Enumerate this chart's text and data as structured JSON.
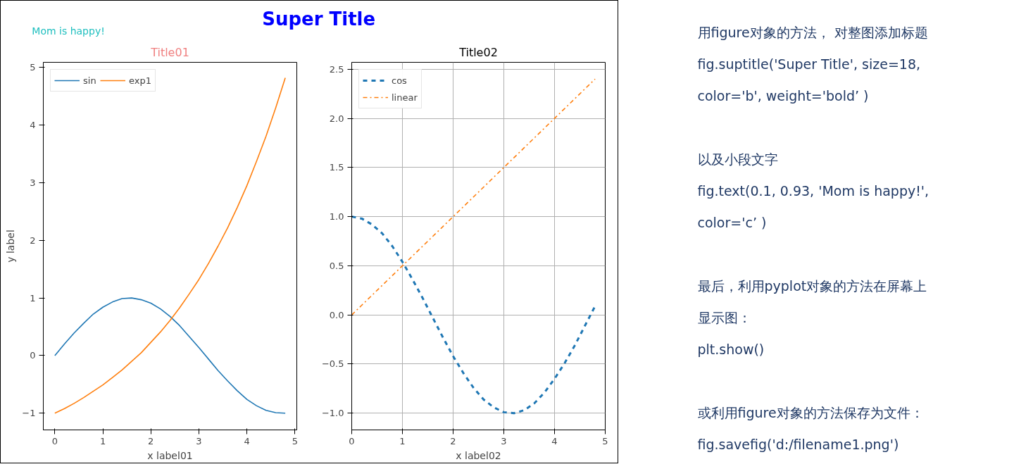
{
  "chart_data": [
    {
      "type": "line",
      "title": "Title01",
      "xlabel": "x label01",
      "ylabel": "y label",
      "annotations": [
        "Super Title",
        "Mom is happy!"
      ],
      "x": [
        0,
        0.2,
        0.4,
        0.6,
        0.8,
        1.0,
        1.2,
        1.4,
        1.6,
        1.8,
        2.0,
        2.2,
        2.4,
        2.6,
        2.8,
        3.0,
        3.2,
        3.4,
        3.6,
        3.8,
        4.0,
        4.2,
        4.4,
        4.6,
        4.8
      ],
      "series": [
        {
          "name": "sin",
          "color": "#1f77b4",
          "line_style": "solid",
          "values": [
            0,
            0.2,
            0.39,
            0.56,
            0.72,
            0.84,
            0.93,
            0.99,
            1.0,
            0.97,
            0.91,
            0.81,
            0.68,
            0.52,
            0.33,
            0.14,
            -0.06,
            -0.26,
            -0.44,
            -0.61,
            -0.76,
            -0.87,
            -0.95,
            -0.99,
            -1.0
          ]
        },
        {
          "name": "exp1",
          "color": "#ff7f0e",
          "line_style": "solid",
          "values": [
            -1,
            -0.92,
            -0.83,
            -0.73,
            -0.62,
            -0.51,
            -0.38,
            -0.25,
            -0.1,
            0.05,
            0.23,
            0.41,
            0.61,
            0.83,
            1.07,
            1.32,
            1.6,
            1.9,
            2.22,
            2.57,
            2.95,
            3.37,
            3.81,
            4.3,
            4.82
          ]
        }
      ],
      "xlim": [
        -0.24,
        5.04
      ],
      "xticks": [
        0,
        1,
        2,
        3,
        4,
        5
      ],
      "ylim": [
        -1.29,
        5.09
      ],
      "yticks": [
        {
          "value": -1,
          "label": "−1"
        },
        0,
        1,
        2,
        3,
        4,
        5
      ],
      "grid": false,
      "legend": "top left",
      "marker": "none"
    },
    {
      "type": "line",
      "title": "Title02",
      "xlabel": "x label02",
      "x": [
        0,
        0.2,
        0.4,
        0.6,
        0.8,
        1.0,
        1.2,
        1.4,
        1.6,
        1.8,
        2.0,
        2.2,
        2.4,
        2.6,
        2.8,
        3.0,
        3.2,
        3.4,
        3.6,
        3.8,
        4.0,
        4.2,
        4.4,
        4.6,
        4.8
      ],
      "series": [
        {
          "name": "cos",
          "color": "#1f77b4",
          "line_style": "dashed",
          "values": [
            1,
            0.98,
            0.92,
            0.83,
            0.7,
            0.54,
            0.36,
            0.17,
            -0.03,
            -0.23,
            -0.42,
            -0.59,
            -0.74,
            -0.86,
            -0.94,
            -0.99,
            -1.0,
            -0.97,
            -0.9,
            -0.79,
            -0.65,
            -0.49,
            -0.31,
            -0.11,
            0.09
          ]
        },
        {
          "name": "linear",
          "color": "#ff7f0e",
          "line_style": "dashdot",
          "values": [
            0,
            0.1,
            0.2,
            0.3,
            0.4,
            0.5,
            0.6,
            0.7,
            0.8,
            0.9,
            1.0,
            1.1,
            1.2,
            1.3,
            1.4,
            1.5,
            1.6,
            1.7,
            1.8,
            1.9,
            2.0,
            2.1,
            2.2,
            2.3,
            2.4
          ]
        }
      ],
      "xlim": [
        0,
        5
      ],
      "xticks": [
        0,
        1,
        2,
        3,
        4,
        5
      ],
      "ylim": [
        -1.17,
        2.57
      ],
      "yticks": [
        {
          "value": -1,
          "label": "−1.0"
        },
        {
          "value": -0.5,
          "label": "−0.5"
        },
        {
          "value": 0,
          "label": "0.0"
        },
        0.5,
        {
          "value": 1,
          "label": "1.0"
        },
        1.5,
        {
          "value": 2,
          "label": "2.0"
        },
        2.5
      ],
      "grid": true,
      "legend": "top left",
      "marker": "none"
    },
    {
      "type": "other",
      "annotations": [
        "用figure对象的方法， 对整图添加标题",
        "fig.suptitle('Super Title', size=18,",
        "color='b', weight='bold’ )",
        "以及小段文字",
        "fig.text(0.1, 0.93, 'Mom is happy!',",
        "color='c’ )",
        "最后，利用pyplot对象的方法在屏幕上",
        "显示图：",
        "plt.show()",
        "或利用figure对象的方法保存为文件：",
        "fig.savefig('d:/filename1.png')"
      ]
    }
  ]
}
